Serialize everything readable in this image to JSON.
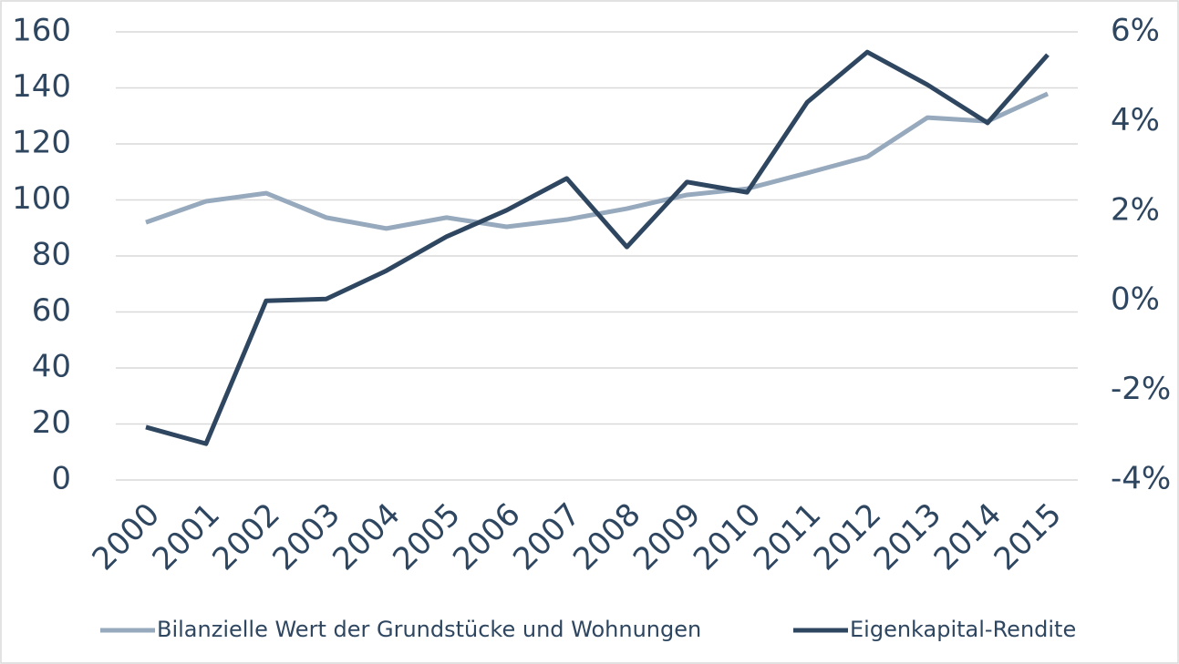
{
  "chart_data": {
    "type": "line",
    "categories": [
      "2000",
      "2001",
      "2002",
      "2003",
      "2004",
      "2005",
      "2006",
      "2007",
      "2008",
      "2009",
      "2010",
      "2011",
      "2012",
      "2013",
      "2014",
      "2015"
    ],
    "series": [
      {
        "name": "Bilanzielle Wert der Grundstücke und Wohnungen",
        "color": "#96a9bd",
        "values": [
          92,
          99.5,
          102.4,
          93.7,
          89.8,
          93.7,
          90.4,
          93,
          96.9,
          101.8,
          104,
          109.6,
          115.4,
          129.4,
          128.1,
          137.9
        ]
      },
      {
        "name": "Eigenkapital-Rendite",
        "color": "#2e4660",
        "axis": "y2",
        "values": [
          -2.82,
          -3.19,
          0.0,
          0.04,
          0.67,
          1.43,
          2.02,
          2.73,
          1.2,
          2.65,
          2.42,
          4.43,
          5.55,
          4.82,
          3.97,
          5.49
        ]
      }
    ],
    "ylim": [
      0,
      160
    ],
    "yticks": [
      0,
      20,
      40,
      60,
      80,
      100,
      120,
      140,
      160
    ],
    "y2lim": [
      -4,
      6
    ],
    "y2ticks": [
      {
        "value": -4,
        "label": "-4%"
      },
      {
        "value": -2,
        "label": "-2%"
      },
      {
        "value": 0,
        "label": "0%"
      },
      {
        "value": 2,
        "label": "2%"
      },
      {
        "value": 4,
        "label": "4%"
      },
      {
        "value": 6,
        "label": "6%"
      }
    ],
    "grid": true,
    "legend": "bottom"
  }
}
